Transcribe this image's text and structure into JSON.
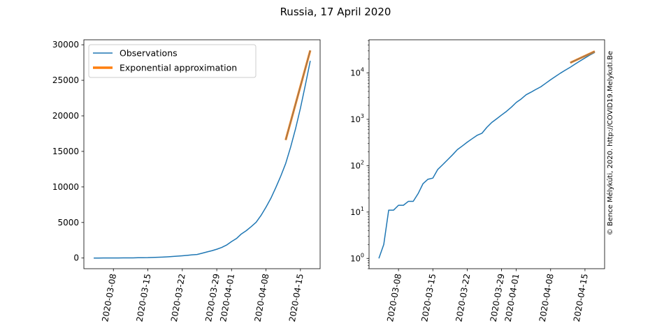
{
  "title": "Russia, 17 April 2020",
  "watermark": "© Bence Mélykúti, 2020. http://COVID19.Melykuti.Be",
  "colors": {
    "observations": "#1f77b4",
    "fit": "#ff7f0e",
    "watermark": "#c8c8c8"
  },
  "chart_data": [
    {
      "type": "line",
      "yscale": "linear",
      "ylim": [
        -1500,
        30700
      ],
      "yticks": [
        0,
        5000,
        10000,
        15000,
        20000,
        25000,
        30000
      ],
      "xticks": [
        "2020-03-08",
        "2020-03-15",
        "2020-03-22",
        "2020-03-29",
        "2020-04-01",
        "2020-04-08",
        "2020-04-15"
      ],
      "xlim": [
        "2020-03-02",
        "2020-04-19"
      ],
      "grid": false,
      "legend": {
        "position": "top-left",
        "entries": [
          "Observations",
          "Exponential approximation"
        ]
      },
      "series": [
        {
          "name": "Observations",
          "x": [
            "2020-03-04",
            "2020-03-05",
            "2020-03-06",
            "2020-03-07",
            "2020-03-08",
            "2020-03-09",
            "2020-03-10",
            "2020-03-11",
            "2020-03-12",
            "2020-03-13",
            "2020-03-14",
            "2020-03-15",
            "2020-03-16",
            "2020-03-17",
            "2020-03-18",
            "2020-03-19",
            "2020-03-20",
            "2020-03-21",
            "2020-03-22",
            "2020-03-23",
            "2020-03-24",
            "2020-03-25",
            "2020-03-26",
            "2020-03-27",
            "2020-03-28",
            "2020-03-29",
            "2020-03-30",
            "2020-03-31",
            "2020-04-01",
            "2020-04-02",
            "2020-04-03",
            "2020-04-04",
            "2020-04-05",
            "2020-04-06",
            "2020-04-07",
            "2020-04-08",
            "2020-04-09",
            "2020-04-10",
            "2020-04-11",
            "2020-04-12",
            "2020-04-13",
            "2020-04-14",
            "2020-04-15",
            "2020-04-16",
            "2020-04-17"
          ],
          "y": [
            1,
            2,
            11,
            11,
            14,
            14,
            17,
            17,
            25,
            41,
            51,
            54,
            83,
            105,
            134,
            171,
            222,
            266,
            321,
            381,
            451,
            500,
            671,
            856,
            1026,
            1238,
            1484,
            1830,
            2315,
            2744,
            3389,
            3850,
            4417,
            5029,
            6000,
            7155,
            8414,
            9915,
            11519,
            13294,
            15589,
            18160,
            21079,
            24343,
            27736
          ]
        },
        {
          "name": "Exponential approximation",
          "x": [
            "2020-04-12",
            "2020-04-17"
          ],
          "y": [
            16600,
            29200
          ]
        }
      ]
    },
    {
      "type": "line",
      "yscale": "log",
      "ylim": [
        0.6,
        52000
      ],
      "yticks": [
        1,
        10,
        100,
        1000,
        10000
      ],
      "ytick_labels": [
        [
          "10",
          "0"
        ],
        [
          "10",
          "1"
        ],
        [
          "10",
          "2"
        ],
        [
          "10",
          "3"
        ],
        [
          "10",
          "4"
        ]
      ],
      "xticks": [
        "2020-03-08",
        "2020-03-15",
        "2020-03-22",
        "2020-03-29",
        "2020-04-01",
        "2020-04-08",
        "2020-04-15"
      ],
      "xlim": [
        "2020-03-02",
        "2020-04-19"
      ],
      "grid": false,
      "series": [
        {
          "name": "Observations",
          "ref": 0
        },
        {
          "name": "Exponential approximation",
          "ref": 1
        }
      ]
    }
  ]
}
